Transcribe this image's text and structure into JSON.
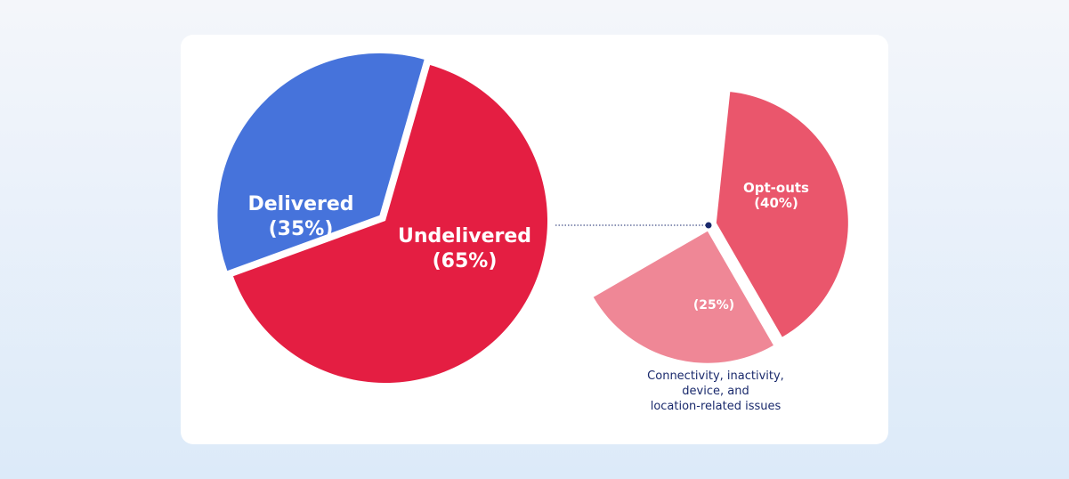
{
  "chart_data": [
    {
      "type": "pie",
      "slices": [
        {
          "label": "Delivered",
          "value": 35,
          "display": "(35%)",
          "color": "#4673db"
        },
        {
          "label": "Undelivered",
          "value": 65,
          "display": "(65%)",
          "color": "#e41e42"
        }
      ]
    },
    {
      "type": "pie",
      "slices": [
        {
          "label": "Opt-outs",
          "value": 40,
          "display": "(40%)",
          "color": "#ea566c"
        },
        {
          "label": "",
          "value": 25,
          "display": "(25%)",
          "color": "#ef8796"
        }
      ],
      "annotation": [
        "Connectivity, inactivity,",
        "device, and",
        "location-related issues"
      ]
    }
  ]
}
